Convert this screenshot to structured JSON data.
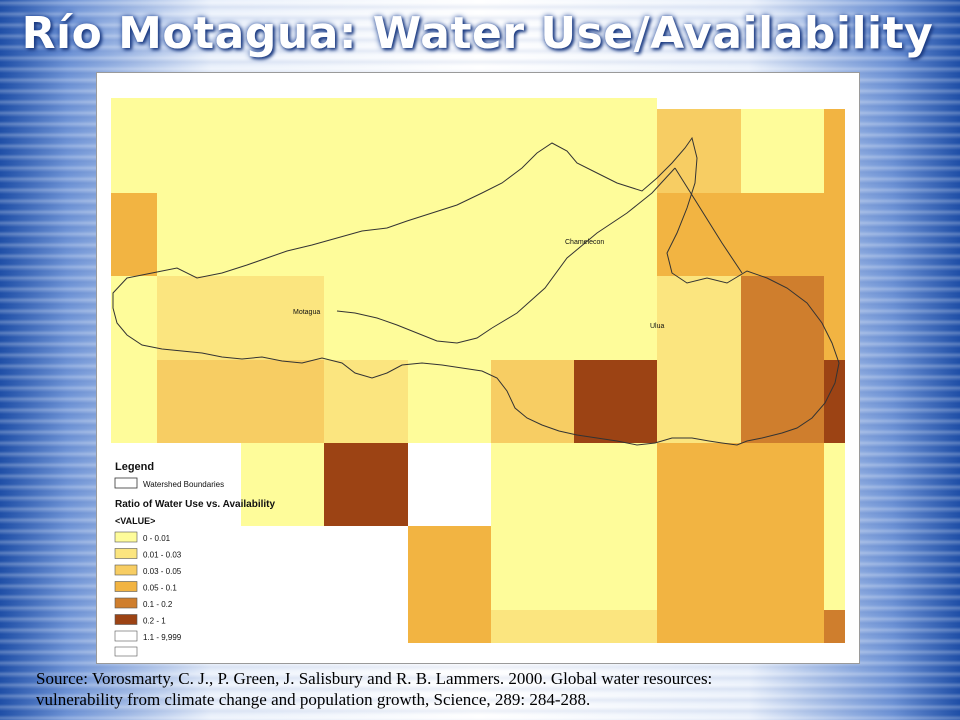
{
  "title": "Río Motagua: Water Use/Availability",
  "map": {
    "labels": {
      "motagua": "Motagua",
      "chamelecon": "Chamelecon",
      "ulua": "Ulua"
    },
    "colors": {
      "class_0": "#fefc9a",
      "class_1": "#fbe57f",
      "class_2": "#f7cd63",
      "class_3": "#f2b442",
      "class_4": "#cf7e2d",
      "class_5": "#9c4314",
      "class_6": "#ffffff"
    }
  },
  "legend": {
    "heading": "Legend",
    "boundary_label": "Watershed Boundaries",
    "ratio_title": "Ratio of Water Use vs. Availability",
    "value_label": "<VALUE>",
    "classes": [
      {
        "label": "0 - 0.01",
        "color": "#fefc9a"
      },
      {
        "label": "0.01 - 0.03",
        "color": "#fbe57f"
      },
      {
        "label": "0.03 - 0.05",
        "color": "#f7cd63"
      },
      {
        "label": "0.05 - 0.1",
        "color": "#f2b442"
      },
      {
        "label": "0.1 - 0.2",
        "color": "#cf7e2d"
      },
      {
        "label": "0.2 - 1",
        "color": "#9c4314"
      },
      {
        "label": "1.1 - 9,999",
        "color": "#ffffff"
      }
    ]
  },
  "source": {
    "line1": "Source: Vorosmarty, C. J., P. Green, J. Salisbury and R. B. Lammers.  2000.  Global water resources:",
    "line2": "vulnerability from climate change and population growth, Science, 289: 284-288."
  }
}
